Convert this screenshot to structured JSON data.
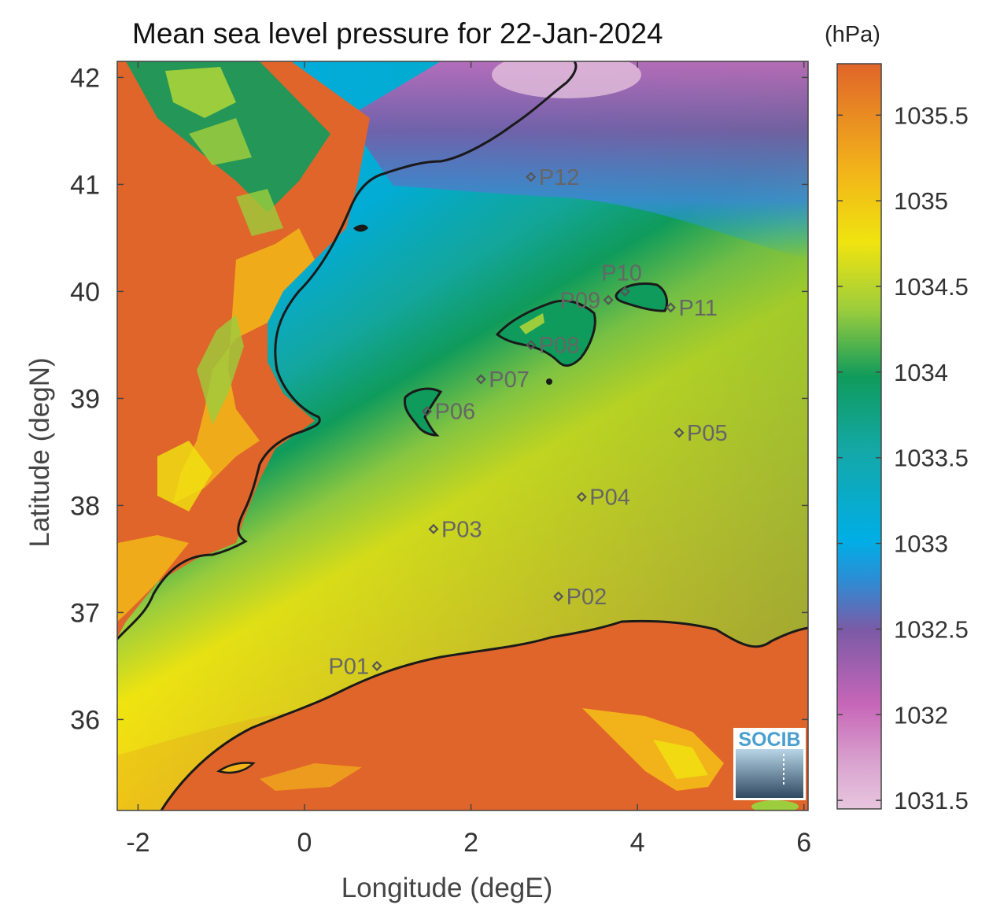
{
  "title": "Mean sea level pressure for 22-Jan-2024",
  "colorbar": {
    "unit": "(hPa)",
    "min": 1031.45,
    "max": 1035.8,
    "ticks": [
      "1031.5",
      "1032",
      "1032.5",
      "1033",
      "1033.5",
      "1034",
      "1034.5",
      "1035",
      "1035.5"
    ],
    "colors": [
      "#e8c6df",
      "#c766b8",
      "#7b5aa6",
      "#2a8fd6",
      "#00aee6",
      "#14a8a8",
      "#0f9b5c",
      "#9ccd3c",
      "#f0e410",
      "#f2b21a",
      "#e0652a"
    ]
  },
  "axes": {
    "xlabel": "Longitude (degE)",
    "ylabel": "Latitude (degN)",
    "xlim": [
      -2.25,
      6.05
    ],
    "ylim": [
      35.15,
      42.15
    ],
    "xticks": [
      "-2",
      "0",
      "2",
      "4",
      "6"
    ],
    "yticks": [
      "36",
      "37",
      "38",
      "39",
      "40",
      "41",
      "42"
    ]
  },
  "logo": {
    "text": "SOCIB"
  },
  "stations": [
    {
      "id": "P01",
      "lon": 0.87,
      "lat": 36.5,
      "side": "left"
    },
    {
      "id": "P02",
      "lon": 3.05,
      "lat": 37.15,
      "side": "right"
    },
    {
      "id": "P03",
      "lon": 1.55,
      "lat": 37.78,
      "side": "right"
    },
    {
      "id": "P04",
      "lon": 3.33,
      "lat": 38.08,
      "side": "right"
    },
    {
      "id": "P05",
      "lon": 4.5,
      "lat": 38.68,
      "side": "right"
    },
    {
      "id": "P06",
      "lon": 1.47,
      "lat": 38.88,
      "side": "right"
    },
    {
      "id": "P07",
      "lon": 2.12,
      "lat": 39.18,
      "side": "right"
    },
    {
      "id": "P08",
      "lon": 2.72,
      "lat": 39.5,
      "side": "right"
    },
    {
      "id": "P09",
      "lon": 3.65,
      "lat": 39.92,
      "side": "left"
    },
    {
      "id": "P10",
      "lon": 3.85,
      "lat": 40.0,
      "side": "up"
    },
    {
      "id": "P11",
      "lon": 4.4,
      "lat": 39.85,
      "side": "right"
    },
    {
      "id": "P12",
      "lon": 2.72,
      "lat": 41.07,
      "side": "right"
    }
  ]
}
